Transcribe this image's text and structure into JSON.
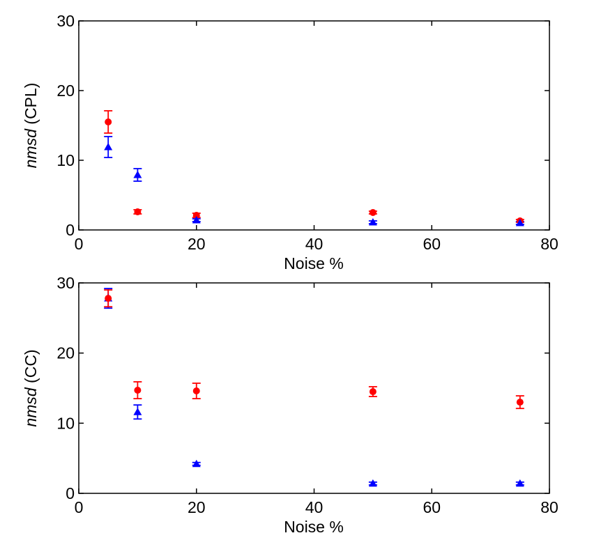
{
  "chart_data": [
    {
      "type": "scatter",
      "xlabel": "Noise %",
      "ylabel_italic": "nmsd",
      "ylabel_rest": " (CPL)",
      "xlim": [
        0,
        80
      ],
      "ylim": [
        0,
        30
      ],
      "xticks": [
        0,
        20,
        40,
        60,
        80
      ],
      "yticks": [
        0,
        10,
        20,
        30
      ],
      "grid": false,
      "series": [
        {
          "color": "#ff0000",
          "marker": "circle",
          "points": [
            {
              "x": 5,
              "y": 15.5,
              "err": 1.6
            },
            {
              "x": 10,
              "y": 2.6,
              "err": 0.3
            },
            {
              "x": 20,
              "y": 2.1,
              "err": 0.3
            },
            {
              "x": 50,
              "y": 2.5,
              "err": 0.2
            },
            {
              "x": 75,
              "y": 1.3,
              "err": 0.2
            }
          ]
        },
        {
          "color": "#0000ff",
          "marker": "triangle",
          "points": [
            {
              "x": 5,
              "y": 11.9,
              "err": 1.5
            },
            {
              "x": 10,
              "y": 7.9,
              "err": 0.9
            },
            {
              "x": 20,
              "y": 1.4,
              "err": 0.2
            },
            {
              "x": 50,
              "y": 1.1,
              "err": 0.2
            },
            {
              "x": 75,
              "y": 1.0,
              "err": 0.2
            }
          ]
        }
      ]
    },
    {
      "type": "scatter",
      "xlabel": "Noise %",
      "ylabel_italic": "nmsd",
      "ylabel_rest": " (CC)",
      "xlim": [
        0,
        80
      ],
      "ylim": [
        0,
        30
      ],
      "xticks": [
        0,
        20,
        40,
        60,
        80
      ],
      "yticks": [
        0,
        10,
        20,
        30
      ],
      "grid": false,
      "series": [
        {
          "color": "#0000ff",
          "marker": "triangle",
          "points": [
            {
              "x": 5,
              "y": 27.8,
              "err": 1.4
            },
            {
              "x": 10,
              "y": 11.6,
              "err": 1.0
            },
            {
              "x": 20,
              "y": 4.2,
              "err": 0.2
            },
            {
              "x": 50,
              "y": 1.4,
              "err": 0.2
            },
            {
              "x": 75,
              "y": 1.4,
              "err": 0.2
            }
          ]
        },
        {
          "color": "#ff0000",
          "marker": "circle",
          "points": [
            {
              "x": 5,
              "y": 27.8,
              "err": 1.2
            },
            {
              "x": 10,
              "y": 14.7,
              "err": 1.2
            },
            {
              "x": 20,
              "y": 14.6,
              "err": 1.1
            },
            {
              "x": 50,
              "y": 14.5,
              "err": 0.7
            },
            {
              "x": 75,
              "y": 13.0,
              "err": 0.9
            }
          ]
        }
      ]
    }
  ]
}
